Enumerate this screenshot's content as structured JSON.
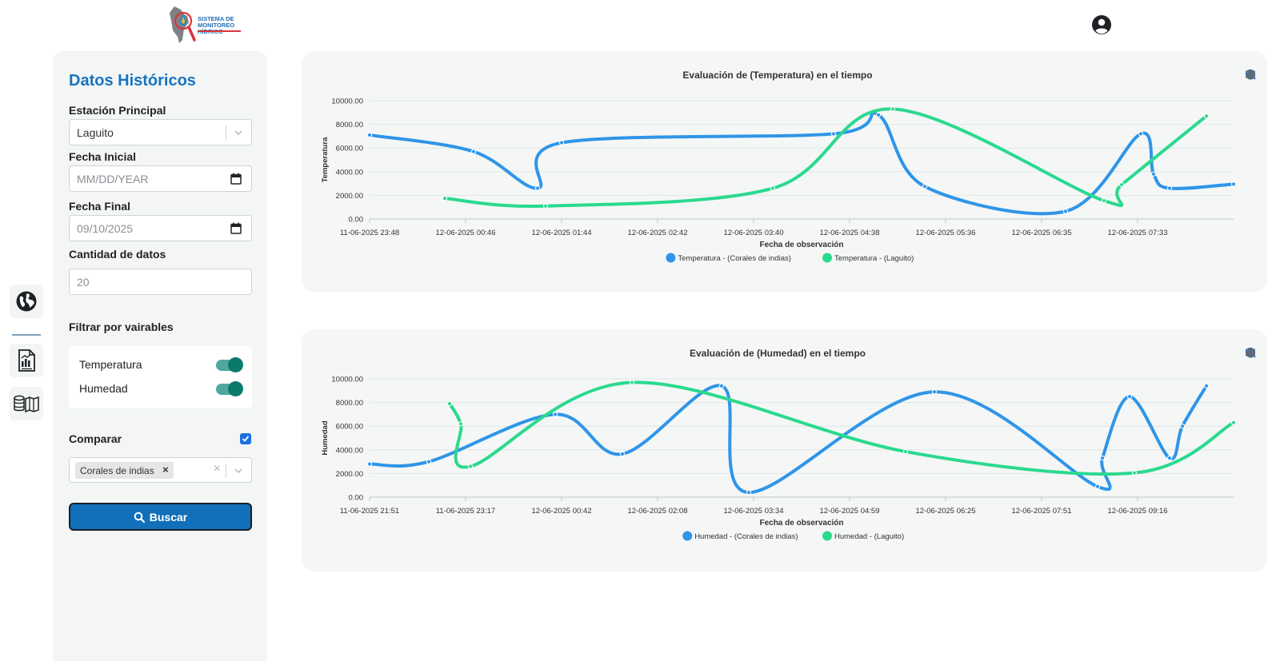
{
  "header": {
    "logo_line1": "SISTEMA DE",
    "logo_line2": "MONITOREO HÍDRICO",
    "user_icon": "user-circle-icon"
  },
  "rail": {
    "items": [
      {
        "icon": "globe-icon"
      },
      {
        "icon": "report-chart-icon"
      },
      {
        "icon": "database-map-icon"
      }
    ]
  },
  "sidebar": {
    "title": "Datos Históricos",
    "station_label": "Estación Principal",
    "station_value": "Laguito",
    "start_label": "Fecha Inicial",
    "start_placeholder": "MM/DD/YEAR",
    "end_label": "Fecha Final",
    "end_value": "09/10/2025",
    "count_label": "Cantidad de datos",
    "count_value": "20",
    "filter_label": "Filtrar por vairables",
    "filters": [
      {
        "label": "Temperatura",
        "on": true
      },
      {
        "label": "Humedad",
        "on": true
      }
    ],
    "compare_label": "Comparar",
    "compare_checked": true,
    "compare_chip": "Corales de indias",
    "chip_remove": "×",
    "clear": "×",
    "search_button": "Buscar"
  },
  "colors": {
    "accent": "#1874c0",
    "series_a": "#2f95e8",
    "series_b": "#2bd98e"
  },
  "chart_data": [
    {
      "type": "line",
      "title": "Evaluación de (Temperatura) en el tiempo",
      "xlabel": "Fecha de observación",
      "ylabel": "Temperatura",
      "ylim": [
        0,
        10000
      ],
      "yticks": [
        "10000.00",
        "8000.00",
        "6000.00",
        "4000.00",
        "2000.00",
        "0.00"
      ],
      "xticks": [
        "11-06-2025 23:48",
        "12-06-2025 00:46",
        "12-06-2025 01:44",
        "12-06-2025 02:42",
        "12-06-2025 03:40",
        "12-06-2025 04:38",
        "12-06-2025 05:36",
        "12-06-2025 06:35",
        "12-06-2025 07:33"
      ],
      "xrange": [
        0,
        540
      ],
      "legend_position": "bottom",
      "grid": true,
      "series": [
        {
          "name": "Temperatura - (Corales de indias)",
          "x": [
            0,
            65,
            105,
            120,
            290,
            318,
            347,
            435,
            482,
            490,
            500,
            540
          ],
          "y": [
            7100,
            5700,
            2600,
            6450,
            7200,
            8800,
            2750,
            650,
            7200,
            3800,
            2600,
            2950
          ]
        },
        {
          "name": "Temperatura - (Laguito)",
          "x": [
            47,
            110,
            252,
            327,
            459,
            470,
            523
          ],
          "y": [
            1750,
            1100,
            2600,
            9300,
            1550,
            2900,
            8700
          ]
        }
      ]
    },
    {
      "type": "line",
      "title": "Evaluación de (Humedad) en el tiempo",
      "xlabel": "Fecha de observación",
      "ylabel": "Humedad",
      "ylim": [
        0,
        10000
      ],
      "yticks": [
        "10000.00",
        "8000.00",
        "6000.00",
        "4000.00",
        "2000.00",
        "0.00"
      ],
      "xticks": [
        "11-06-2025 21:51",
        "11-06-2025 23:17",
        "12-06-2025 00:42",
        "12-06-2025 02:08",
        "12-06-2025 03:34",
        "12-06-2025 04:59",
        "12-06-2025 06:25",
        "12-06-2025 07:51",
        "12-06-2025 09:16"
      ],
      "xrange": [
        0,
        540
      ],
      "legend_position": "bottom",
      "grid": true,
      "series": [
        {
          "name": "Humedad - (Corales de indias)",
          "x": [
            0,
            37,
            116,
            158,
            220,
            237,
            353,
            455,
            458,
            475,
            500,
            508,
            523
          ],
          "y": [
            2800,
            3000,
            7000,
            3650,
            9400,
            400,
            8900,
            900,
            3300,
            8500,
            3300,
            6000,
            9400
          ]
        },
        {
          "name": "Humedad - (Laguito)",
          "x": [
            50,
            57,
            63,
            164,
            335,
            478,
            540
          ],
          "y": [
            7900,
            6200,
            2600,
            9700,
            3850,
            2050,
            6300
          ]
        }
      ]
    }
  ]
}
